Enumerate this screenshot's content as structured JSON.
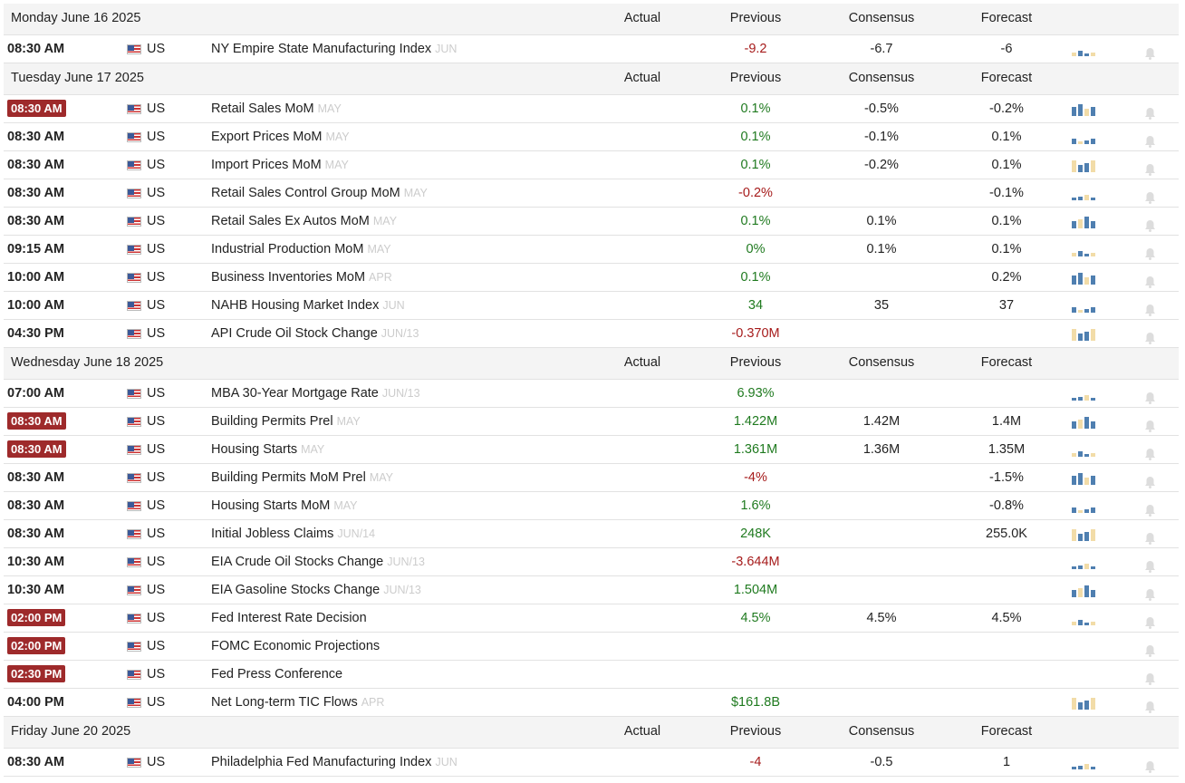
{
  "columns": [
    "Actual",
    "Previous",
    "Consensus",
    "Forecast"
  ],
  "days": [
    {
      "date": "Monday June 16 2025",
      "events": [
        {
          "time": "08:30 AM",
          "country": "US",
          "event": "NY Empire State Manufacturing Index",
          "period": "JUN",
          "previous": "-9.2",
          "consensus": "-6.7",
          "forecast": "-6"
        }
      ]
    },
    {
      "date": "Tuesday June 17 2025",
      "events": [
        {
          "time": "08:30 AM",
          "highlight": true,
          "country": "US",
          "event": "Retail Sales MoM",
          "period": "MAY",
          "previous": "0.1%",
          "consensus": "-0.5%",
          "forecast": "-0.2%"
        },
        {
          "time": "08:30 AM",
          "country": "US",
          "event": "Export Prices MoM",
          "period": "MAY",
          "previous": "0.1%",
          "consensus": "-0.1%",
          "forecast": "0.1%"
        },
        {
          "time": "08:30 AM",
          "country": "US",
          "event": "Import Prices MoM",
          "period": "MAY",
          "previous": "0.1%",
          "consensus": "-0.2%",
          "forecast": "0.1%"
        },
        {
          "time": "08:30 AM",
          "country": "US",
          "event": "Retail Sales Control Group MoM",
          "period": "MAY",
          "previous": "-0.2%",
          "forecast": "-0.1%"
        },
        {
          "time": "08:30 AM",
          "country": "US",
          "event": "Retail Sales Ex Autos MoM",
          "period": "MAY",
          "previous": "0.1%",
          "consensus": "0.1%",
          "forecast": "0.1%"
        },
        {
          "time": "09:15 AM",
          "country": "US",
          "event": "Industrial Production MoM",
          "period": "MAY",
          "previous": "0%",
          "consensus": "0.1%",
          "forecast": "0.1%"
        },
        {
          "time": "10:00 AM",
          "country": "US",
          "event": "Business Inventories MoM",
          "period": "APR",
          "previous": "0.1%",
          "forecast": "0.2%"
        },
        {
          "time": "10:00 AM",
          "country": "US",
          "event": "NAHB Housing Market Index",
          "period": "JUN",
          "previous": "34",
          "consensus": "35",
          "forecast": "37"
        },
        {
          "time": "04:30 PM",
          "country": "US",
          "event": "API Crude Oil Stock Change",
          "period": "JUN/13",
          "previous": "-0.370M"
        }
      ]
    },
    {
      "date": "Wednesday June 18 2025",
      "events": [
        {
          "time": "07:00 AM",
          "country": "US",
          "event": "MBA 30-Year Mortgage Rate",
          "period": "JUN/13",
          "previous": "6.93%"
        },
        {
          "time": "08:30 AM",
          "highlight": true,
          "country": "US",
          "event": "Building Permits Prel",
          "period": "MAY",
          "previous": "1.422M",
          "consensus": "1.42M",
          "forecast": "1.4M"
        },
        {
          "time": "08:30 AM",
          "highlight": true,
          "country": "US",
          "event": "Housing Starts",
          "period": "MAY",
          "previous": "1.361M",
          "consensus": "1.36M",
          "forecast": "1.35M"
        },
        {
          "time": "08:30 AM",
          "country": "US",
          "event": "Building Permits MoM Prel",
          "period": "MAY",
          "previous": "-4%",
          "forecast": "-1.5%"
        },
        {
          "time": "08:30 AM",
          "country": "US",
          "event": "Housing Starts MoM",
          "period": "MAY",
          "previous": "1.6%",
          "forecast": "-0.8%"
        },
        {
          "time": "08:30 AM",
          "country": "US",
          "event": "Initial Jobless Claims",
          "period": "JUN/14",
          "previous": "248K",
          "forecast": "255.0K"
        },
        {
          "time": "10:30 AM",
          "country": "US",
          "event": "EIA Crude Oil Stocks Change",
          "period": "JUN/13",
          "previous": "-3.644M"
        },
        {
          "time": "10:30 AM",
          "country": "US",
          "event": "EIA Gasoline Stocks Change",
          "period": "JUN/13",
          "previous": "1.504M"
        },
        {
          "time": "02:00 PM",
          "highlight": true,
          "country": "US",
          "event": "Fed Interest Rate Decision",
          "previous": "4.5%",
          "consensus": "4.5%",
          "forecast": "4.5%"
        },
        {
          "time": "02:00 PM",
          "highlight": true,
          "country": "US",
          "event": "FOMC Economic Projections"
        },
        {
          "time": "02:30 PM",
          "highlight": true,
          "country": "US",
          "event": "Fed Press Conference"
        },
        {
          "time": "04:00 PM",
          "country": "US",
          "event": "Net Long-term TIC Flows",
          "period": "APR",
          "previous": "$161.8B"
        }
      ]
    },
    {
      "date": "Friday June 20 2025",
      "events": [
        {
          "time": "08:30 AM",
          "country": "US",
          "event": "Philadelphia Fed Manufacturing Index",
          "period": "JUN",
          "previous": "-4",
          "consensus": "-0.5",
          "forecast": "1"
        }
      ]
    }
  ]
}
